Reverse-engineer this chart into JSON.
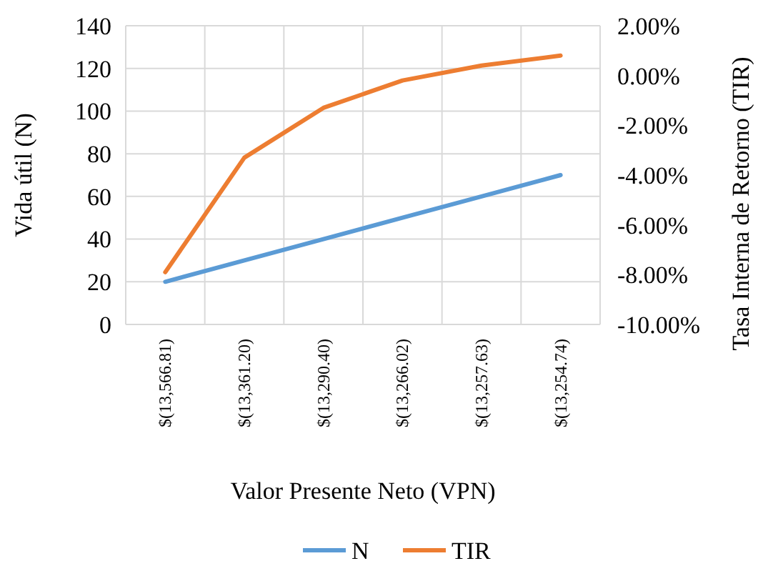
{
  "chart_data": {
    "type": "line",
    "xlabel": "Valor Presente Neto (VPN)",
    "ylabel": "Vida útil (N)",
    "y2label": "Tasa Interna de Retorno (TIR)",
    "categories": [
      "$(13,566.81)",
      "$(13,361.20)",
      "$(13,290.40)",
      "$(13,266.02)",
      "$(13,257.63)",
      "$(13,254.74)"
    ],
    "series": [
      {
        "name": "N",
        "color": "#5b9bd5",
        "values": [
          20,
          30,
          40,
          50,
          60,
          70
        ]
      },
      {
        "name": "TIR",
        "color": "#ed7d31",
        "axis": "y2",
        "values": [
          -7.9,
          -3.3,
          -1.3,
          -0.2,
          0.4,
          0.8
        ]
      }
    ],
    "ylim": [
      0,
      140
    ],
    "yticks": [
      0,
      20,
      40,
      60,
      80,
      100,
      120,
      140
    ],
    "y2lim": [
      -10,
      2
    ],
    "y2ticks": [
      {
        "value": -10,
        "label": "-10.00%"
      },
      {
        "value": -8,
        "label": "-8.00%"
      },
      {
        "value": -6,
        "label": "-6.00%"
      },
      {
        "value": -4,
        "label": "-4.00%"
      },
      {
        "value": -2,
        "label": "-2.00%"
      },
      {
        "value": 0,
        "label": "0.00%"
      },
      {
        "value": 2,
        "label": "2.00%"
      }
    ],
    "grid": true,
    "legend": "bottom",
    "marker": "none",
    "line_style": "solid"
  }
}
